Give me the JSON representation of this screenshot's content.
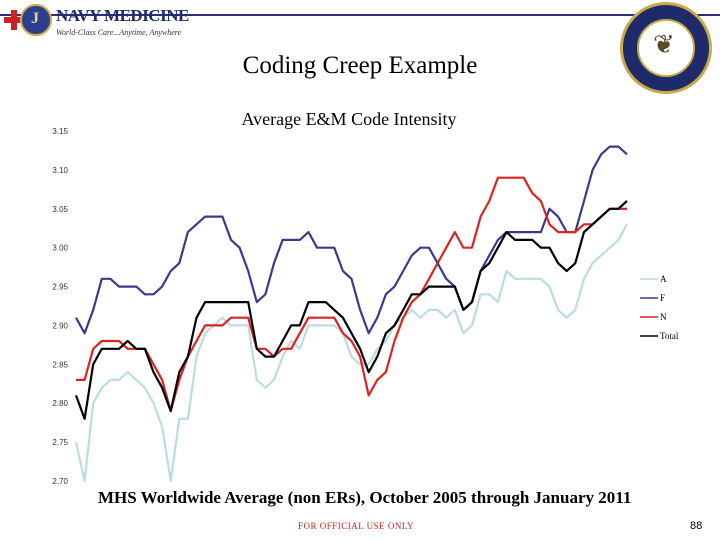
{
  "header": {
    "logo_name": "NAVY MEDICINE",
    "logo_tagline": "World-Class Care...Anytime, Anywhere"
  },
  "page_title": "Coding Creep Example",
  "footer": {
    "caption": "MHS Worldwide Average (non ERs), October 2005 through January 2011",
    "classification": "FOR OFFICIAL USE ONLY",
    "page_number": "88"
  },
  "colors": {
    "A": "#b9dde0",
    "F": "#3a3a8c",
    "N": "#dd2222",
    "Total": "#000000"
  },
  "chart_data": {
    "type": "line",
    "title": "Average E&M Code Intensity",
    "xlabel": "",
    "ylabel": "",
    "ylim": [
      2.7,
      3.15
    ],
    "yticks": [
      "3.15",
      "3.10",
      "3.05",
      "3.00",
      "2.95",
      "2.90",
      "2.85",
      "2.80",
      "2.75",
      "2.70"
    ],
    "grid": false,
    "legend_position": "right",
    "series": [
      {
        "name": "A",
        "values": [
          2.75,
          2.7,
          2.8,
          2.82,
          2.83,
          2.83,
          2.84,
          2.83,
          2.82,
          2.8,
          2.77,
          2.7,
          2.78,
          2.78,
          2.86,
          2.89,
          2.9,
          2.91,
          2.9,
          2.9,
          2.9,
          2.83,
          2.82,
          2.83,
          2.86,
          2.88,
          2.87,
          2.9,
          2.9,
          2.9,
          2.9,
          2.89,
          2.86,
          2.85,
          2.85,
          2.87,
          2.88,
          2.9,
          2.91,
          2.92,
          2.91,
          2.92,
          2.92,
          2.91,
          2.92,
          2.89,
          2.9,
          2.94,
          2.94,
          2.93,
          2.97,
          2.96,
          2.96,
          2.96,
          2.96,
          2.95,
          2.92,
          2.91,
          2.92,
          2.96,
          2.98,
          2.99,
          3.0,
          3.01,
          3.03
        ]
      },
      {
        "name": "F",
        "values": [
          2.91,
          2.89,
          2.92,
          2.96,
          2.96,
          2.95,
          2.95,
          2.95,
          2.94,
          2.94,
          2.95,
          2.97,
          2.98,
          3.02,
          3.03,
          3.04,
          3.04,
          3.04,
          3.01,
          3.0,
          2.97,
          2.93,
          2.94,
          2.98,
          3.01,
          3.01,
          3.01,
          3.02,
          3.0,
          3.0,
          3.0,
          2.97,
          2.96,
          2.92,
          2.89,
          2.91,
          2.94,
          2.95,
          2.97,
          2.99,
          3.0,
          3.0,
          2.98,
          2.96,
          2.95,
          2.92,
          2.93,
          2.97,
          2.99,
          3.01,
          3.02,
          3.02,
          3.02,
          3.02,
          3.02,
          3.05,
          3.04,
          3.02,
          3.02,
          3.06,
          3.1,
          3.12,
          3.13,
          3.13,
          3.12
        ]
      },
      {
        "name": "N",
        "values": [
          2.83,
          2.83,
          2.87,
          2.88,
          2.88,
          2.88,
          2.87,
          2.87,
          2.87,
          2.85,
          2.83,
          2.79,
          2.83,
          2.86,
          2.88,
          2.9,
          2.9,
          2.9,
          2.91,
          2.91,
          2.91,
          2.87,
          2.87,
          2.86,
          2.87,
          2.87,
          2.89,
          2.91,
          2.91,
          2.91,
          2.91,
          2.89,
          2.88,
          2.86,
          2.81,
          2.83,
          2.84,
          2.88,
          2.91,
          2.93,
          2.94,
          2.96,
          2.98,
          3.0,
          3.02,
          3.0,
          3.0,
          3.04,
          3.06,
          3.09,
          3.09,
          3.09,
          3.09,
          3.07,
          3.06,
          3.03,
          3.02,
          3.02,
          3.02,
          3.03,
          3.03,
          3.04,
          3.05,
          3.05,
          3.05
        ]
      },
      {
        "name": "Total",
        "values": [
          2.81,
          2.78,
          2.85,
          2.87,
          2.87,
          2.87,
          2.88,
          2.87,
          2.87,
          2.84,
          2.82,
          2.79,
          2.84,
          2.86,
          2.91,
          2.93,
          2.93,
          2.93,
          2.93,
          2.93,
          2.93,
          2.87,
          2.86,
          2.86,
          2.88,
          2.9,
          2.9,
          2.93,
          2.93,
          2.93,
          2.92,
          2.91,
          2.89,
          2.87,
          2.84,
          2.86,
          2.89,
          2.9,
          2.92,
          2.94,
          2.94,
          2.95,
          2.95,
          2.95,
          2.95,
          2.92,
          2.93,
          2.97,
          2.98,
          3.0,
          3.02,
          3.01,
          3.01,
          3.01,
          3.0,
          3.0,
          2.98,
          2.97,
          2.98,
          3.02,
          3.03,
          3.04,
          3.05,
          3.05,
          3.06
        ]
      }
    ]
  }
}
